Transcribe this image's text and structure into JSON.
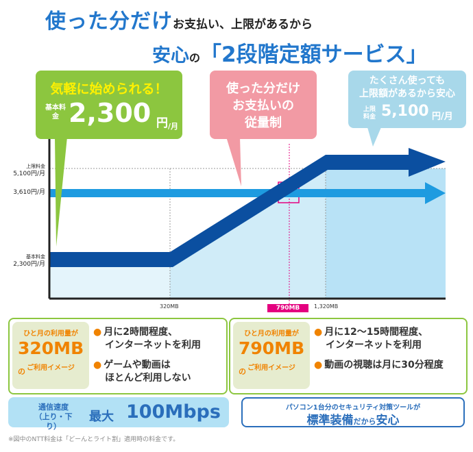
{
  "title": {
    "line1_big": "使った分だけ",
    "line1_small": "お支払い、上限があるから",
    "line2_a": "安心",
    "line2_no": "の",
    "line2_b": "「2段階定額サービス」"
  },
  "bubbles": {
    "green": {
      "head": "気軽に始められる！",
      "label": "基本料金",
      "value": "2,300",
      "unit": "円",
      "per": "/月"
    },
    "pink": {
      "text_line1": "使った分だけ",
      "text_line2": "お支払いの",
      "text_line3": "従量制"
    },
    "blue": {
      "head_line1": "たくさん使っても",
      "head_line2": "上限額があるから安心",
      "label": "上限料金",
      "value": "5,100",
      "unit": "円/月"
    }
  },
  "chart_data": {
    "type": "line",
    "x_ticks": [
      "320MB",
      "790MB",
      "1,320MB"
    ],
    "x_values_mb": [
      0,
      320,
      1320,
      1900
    ],
    "y_tick_labels": [
      {
        "small": "上限料金",
        "main": "5,100円/月"
      },
      {
        "small": "",
        "main": "3,610円/月"
      },
      {
        "small": "基本料金",
        "main": "2,300円/月"
      }
    ],
    "series": [
      {
        "values_yen": [
          2300,
          2300,
          5100,
          5100
        ]
      },
      {
        "values_yen": [
          3610,
          3610
        ]
      }
    ],
    "highlight_x": "790MB",
    "colors": {
      "tiered": "#0b4fa0",
      "flat": "#1e9be0",
      "marker": "#e4007f"
    }
  },
  "info": [
    {
      "l1": "ひと月の利用量が",
      "amount": "320MB",
      "no": "の",
      "l3": "ご利用イメージ",
      "bullets": [
        [
          "月に2時間程度、",
          "インターネットを利用"
        ],
        [
          "ゲームや動画は",
          "ほとんど利用しない"
        ]
      ]
    },
    {
      "l1": "ひと月の利用量が",
      "amount": "790MB",
      "no": "の",
      "l3": "ご利用イメージ",
      "bullets": [
        [
          "月に12～15時間程度、",
          "インターネットを利用"
        ],
        [
          "動画の視聴は月に30分程度"
        ]
      ]
    }
  ],
  "bottom": {
    "speed_label1": "通信速度",
    "speed_label2": "（上り・下り）",
    "speed_prefix": "最大",
    "speed_value": "100Mbps",
    "sec_line1": "パソコン1台分のセキュリティ対策ツールが",
    "sec_line2a": "標準装備",
    "sec_line2b": "だから",
    "sec_line2c": "安心"
  },
  "note": "※図中のNTT料金は「どーんとライト割」適用時の料金です。"
}
